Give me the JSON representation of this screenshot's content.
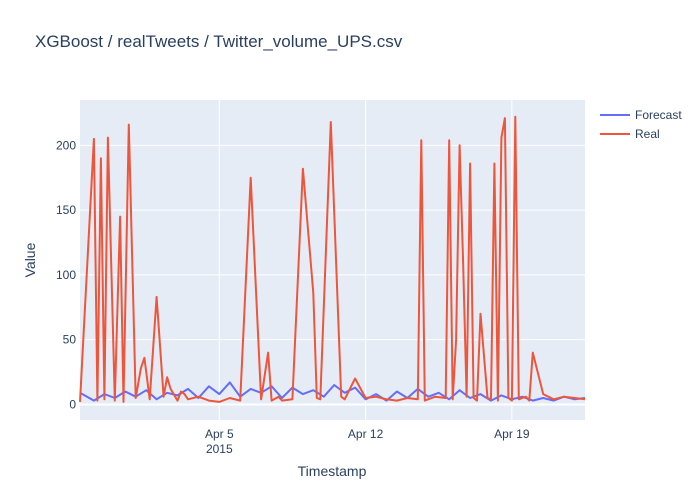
{
  "chart_data": {
    "type": "line",
    "title": "XGBoost / realTweets / Twitter_volume_UPS.csv",
    "xlabel": "Timestamp",
    "ylabel": "Value",
    "x_range": [
      "2015-03-29T08:00",
      "2015-04-22T12:00"
    ],
    "ylim": [
      -12,
      235
    ],
    "y_ticks": [
      0,
      50,
      100,
      150,
      200
    ],
    "x_ticks": [
      {
        "date": "2015-04-05",
        "label": "Apr 5",
        "sublabel": "2015"
      },
      {
        "date": "2015-04-12",
        "label": "Apr 12",
        "sublabel": ""
      },
      {
        "date": "2015-04-19",
        "label": "Apr 19",
        "sublabel": ""
      }
    ],
    "legend_position": "top-right",
    "series": [
      {
        "name": "Forecast",
        "color": "#636efa",
        "x": [
          "2015-03-29T08:00",
          "2015-03-30T00:00",
          "2015-03-30T12:00",
          "2015-03-31T00:00",
          "2015-03-31T12:00",
          "2015-04-01T00:00",
          "2015-04-01T12:00",
          "2015-04-02T00:00",
          "2015-04-02T12:00",
          "2015-04-03T00:00",
          "2015-04-03T12:00",
          "2015-04-04T00:00",
          "2015-04-04T12:00",
          "2015-04-05T00:00",
          "2015-04-05T12:00",
          "2015-04-06T00:00",
          "2015-04-06T12:00",
          "2015-04-07T00:00",
          "2015-04-07T12:00",
          "2015-04-08T00:00",
          "2015-04-08T12:00",
          "2015-04-09T00:00",
          "2015-04-09T12:00",
          "2015-04-10T00:00",
          "2015-04-10T12:00",
          "2015-04-11T00:00",
          "2015-04-11T12:00",
          "2015-04-12T00:00",
          "2015-04-12T12:00",
          "2015-04-13T00:00",
          "2015-04-13T12:00",
          "2015-04-14T00:00",
          "2015-04-14T12:00",
          "2015-04-15T00:00",
          "2015-04-15T12:00",
          "2015-04-16T00:00",
          "2015-04-16T12:00",
          "2015-04-17T00:00",
          "2015-04-17T12:00",
          "2015-04-18T00:00",
          "2015-04-18T12:00",
          "2015-04-19T00:00",
          "2015-04-19T12:00",
          "2015-04-20T00:00",
          "2015-04-20T12:00",
          "2015-04-21T00:00",
          "2015-04-21T12:00",
          "2015-04-22T00:00",
          "2015-04-22T12:00"
        ],
        "y": [
          9,
          3,
          8,
          5,
          10,
          6,
          11,
          4,
          9,
          7,
          12,
          5,
          14,
          8,
          17,
          6,
          12,
          9,
          14,
          5,
          13,
          8,
          11,
          6,
          15,
          9,
          13,
          4,
          8,
          3,
          10,
          5,
          12,
          6,
          9,
          4,
          11,
          5,
          8,
          3,
          7,
          4,
          6,
          3,
          5,
          3,
          6,
          4,
          5
        ]
      },
      {
        "name": "Real",
        "color": "#ef553b",
        "x": [
          "2015-03-29T08:00",
          "2015-03-30T00:00",
          "2015-03-30T04:00",
          "2015-03-30T08:00",
          "2015-03-30T12:00",
          "2015-03-30T16:00",
          "2015-03-31T00:00",
          "2015-03-31T06:00",
          "2015-03-31T10:00",
          "2015-03-31T16:00",
          "2015-04-01T00:00",
          "2015-04-01T06:00",
          "2015-04-01T10:00",
          "2015-04-01T16:00",
          "2015-04-02T00:00",
          "2015-04-02T08:00",
          "2015-04-02T12:00",
          "2015-04-02T16:00",
          "2015-04-03T00:00",
          "2015-04-03T04:00",
          "2015-04-03T08:00",
          "2015-04-03T12:00",
          "2015-04-04T00:00",
          "2015-04-04T12:00",
          "2015-04-05T00:00",
          "2015-04-05T12:00",
          "2015-04-06T00:00",
          "2015-04-06T12:00",
          "2015-04-07T00:00",
          "2015-04-07T08:00",
          "2015-04-07T12:00",
          "2015-04-07T20:00",
          "2015-04-08T00:00",
          "2015-04-08T12:00",
          "2015-04-09T00:00",
          "2015-04-09T12:00",
          "2015-04-09T16:00",
          "2015-04-09T20:00",
          "2015-04-10T08:00",
          "2015-04-10T20:00",
          "2015-04-11T00:00",
          "2015-04-11T12:00",
          "2015-04-12T00:00",
          "2015-04-12T12:00",
          "2015-04-13T00:00",
          "2015-04-13T12:00",
          "2015-04-14T00:00",
          "2015-04-14T12:00",
          "2015-04-14T16:00",
          "2015-04-14T20:00",
          "2015-04-15T08:00",
          "2015-04-15T20:00",
          "2015-04-16T00:00",
          "2015-04-16T04:00",
          "2015-04-16T08:00",
          "2015-04-16T12:00",
          "2015-04-16T16:00",
          "2015-04-16T20:00",
          "2015-04-17T00:00",
          "2015-04-17T04:00",
          "2015-04-17T08:00",
          "2015-04-17T12:00",
          "2015-04-17T20:00",
          "2015-04-18T00:00",
          "2015-04-18T04:00",
          "2015-04-18T08:00",
          "2015-04-18T12:00",
          "2015-04-18T16:00",
          "2015-04-18T20:00",
          "2015-04-19T00:00",
          "2015-04-19T04:00",
          "2015-04-19T08:00",
          "2015-04-19T16:00",
          "2015-04-19T20:00",
          "2015-04-20T00:00",
          "2015-04-20T12:00",
          "2015-04-21T00:00",
          "2015-04-21T12:00",
          "2015-04-22T00:00",
          "2015-04-22T12:00"
        ],
        "y": [
          2,
          205,
          3,
          190,
          4,
          206,
          3,
          145,
          2,
          216,
          5,
          28,
          36,
          4,
          83,
          6,
          21,
          12,
          3,
          10,
          8,
          4,
          6,
          3,
          2,
          5,
          3,
          175,
          4,
          40,
          3,
          6,
          3,
          4,
          182,
          86,
          5,
          4,
          218,
          6,
          4,
          20,
          5,
          6,
          4,
          3,
          5,
          4,
          204,
          3,
          6,
          5,
          204,
          4,
          50,
          200,
          110,
          6,
          186,
          5,
          3,
          70,
          5,
          4,
          186,
          3,
          206,
          221,
          5,
          3,
          222,
          4,
          6,
          3,
          40,
          8,
          4,
          6,
          5,
          4
        ]
      }
    ]
  }
}
